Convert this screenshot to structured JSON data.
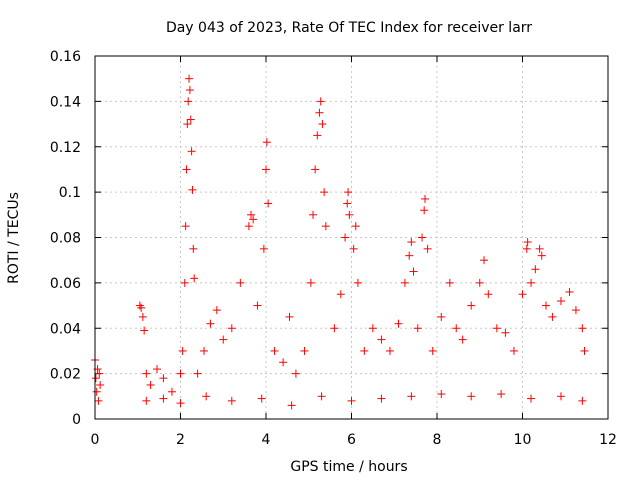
{
  "chart_data": {
    "type": "scatter",
    "title": "Day 043 of 2023, Rate Of TEC Index for receiver larr",
    "xlabel": "GPS time / hours",
    "ylabel": "ROTI / TECUs",
    "xlim": [
      0,
      12
    ],
    "ylim": [
      0,
      0.16
    ],
    "x_ticks": [
      0,
      2,
      4,
      6,
      8,
      10,
      12
    ],
    "x_tick_labels": [
      "0",
      "2",
      "4",
      "6",
      "8",
      "10",
      "12"
    ],
    "y_ticks": [
      0,
      0.02,
      0.04,
      0.06,
      0.08,
      0.1,
      0.12,
      0.14,
      0.16
    ],
    "y_tick_labels": [
      "0",
      "0.02",
      "0.04",
      "0.06",
      "0.08",
      "0.1",
      "0.12",
      "0.14",
      "0.16"
    ],
    "grid": true,
    "grid_style": "dotted",
    "marker": "+",
    "series_color": "#ff0000",
    "series": [
      {
        "name": "",
        "points": [
          [
            0.0,
            0.026
          ],
          [
            0.02,
            0.018
          ],
          [
            0.04,
            0.012
          ],
          [
            0.06,
            0.022
          ],
          [
            0.08,
            0.008
          ],
          [
            0.1,
            0.02
          ],
          [
            0.12,
            0.015
          ],
          [
            1.05,
            0.05
          ],
          [
            1.08,
            0.049
          ],
          [
            1.12,
            0.045
          ],
          [
            1.15,
            0.039
          ],
          [
            1.2,
            0.02
          ],
          [
            1.3,
            0.015
          ],
          [
            1.45,
            0.022
          ],
          [
            1.6,
            0.018
          ],
          [
            1.8,
            0.012
          ],
          [
            2.0,
            0.02
          ],
          [
            2.05,
            0.03
          ],
          [
            2.1,
            0.06
          ],
          [
            2.12,
            0.085
          ],
          [
            2.14,
            0.11
          ],
          [
            2.16,
            0.13
          ],
          [
            2.18,
            0.14
          ],
          [
            2.2,
            0.15
          ],
          [
            2.22,
            0.145
          ],
          [
            2.24,
            0.132
          ],
          [
            2.26,
            0.118
          ],
          [
            2.28,
            0.101
          ],
          [
            2.3,
            0.075
          ],
          [
            2.32,
            0.062
          ],
          [
            2.4,
            0.02
          ],
          [
            2.55,
            0.03
          ],
          [
            2.7,
            0.042
          ],
          [
            2.85,
            0.048
          ],
          [
            3.0,
            0.035
          ],
          [
            3.2,
            0.04
          ],
          [
            3.4,
            0.06
          ],
          [
            3.6,
            0.085
          ],
          [
            3.65,
            0.09
          ],
          [
            3.7,
            0.088
          ],
          [
            3.8,
            0.05
          ],
          [
            3.95,
            0.075
          ],
          [
            4.0,
            0.11
          ],
          [
            4.02,
            0.122
          ],
          [
            4.05,
            0.095
          ],
          [
            4.2,
            0.03
          ],
          [
            4.4,
            0.025
          ],
          [
            4.55,
            0.045
          ],
          [
            4.7,
            0.02
          ],
          [
            4.9,
            0.03
          ],
          [
            5.05,
            0.06
          ],
          [
            5.1,
            0.09
          ],
          [
            5.15,
            0.11
          ],
          [
            5.2,
            0.125
          ],
          [
            5.25,
            0.135
          ],
          [
            5.28,
            0.14
          ],
          [
            5.32,
            0.13
          ],
          [
            5.36,
            0.1
          ],
          [
            5.4,
            0.085
          ],
          [
            5.6,
            0.04
          ],
          [
            5.75,
            0.055
          ],
          [
            5.85,
            0.08
          ],
          [
            5.9,
            0.095
          ],
          [
            5.92,
            0.1
          ],
          [
            5.95,
            0.09
          ],
          [
            6.05,
            0.075
          ],
          [
            6.1,
            0.085
          ],
          [
            6.15,
            0.06
          ],
          [
            6.3,
            0.03
          ],
          [
            6.5,
            0.04
          ],
          [
            6.7,
            0.035
          ],
          [
            6.9,
            0.03
          ],
          [
            7.1,
            0.042
          ],
          [
            7.25,
            0.06
          ],
          [
            7.35,
            0.072
          ],
          [
            7.4,
            0.078
          ],
          [
            7.45,
            0.065
          ],
          [
            7.55,
            0.04
          ],
          [
            7.65,
            0.08
          ],
          [
            7.7,
            0.092
          ],
          [
            7.72,
            0.097
          ],
          [
            7.78,
            0.075
          ],
          [
            7.9,
            0.03
          ],
          [
            8.1,
            0.045
          ],
          [
            8.3,
            0.06
          ],
          [
            8.45,
            0.04
          ],
          [
            8.6,
            0.035
          ],
          [
            8.8,
            0.05
          ],
          [
            9.0,
            0.06
          ],
          [
            9.1,
            0.07
          ],
          [
            9.2,
            0.055
          ],
          [
            9.4,
            0.04
          ],
          [
            9.6,
            0.038
          ],
          [
            9.8,
            0.03
          ],
          [
            10.0,
            0.055
          ],
          [
            10.1,
            0.075
          ],
          [
            10.12,
            0.078
          ],
          [
            10.2,
            0.06
          ],
          [
            10.3,
            0.066
          ],
          [
            10.4,
            0.075
          ],
          [
            10.45,
            0.072
          ],
          [
            10.55,
            0.05
          ],
          [
            10.7,
            0.045
          ],
          [
            10.9,
            0.052
          ],
          [
            11.1,
            0.056
          ],
          [
            11.25,
            0.048
          ],
          [
            11.4,
            0.04
          ],
          [
            11.45,
            0.03
          ],
          [
            1.2,
            0.008
          ],
          [
            1.6,
            0.009
          ],
          [
            2.0,
            0.007
          ],
          [
            2.6,
            0.01
          ],
          [
            3.2,
            0.008
          ],
          [
            3.9,
            0.009
          ],
          [
            4.6,
            0.006
          ],
          [
            5.3,
            0.01
          ],
          [
            6.0,
            0.008
          ],
          [
            6.7,
            0.009
          ],
          [
            7.4,
            0.01
          ],
          [
            8.1,
            0.011
          ],
          [
            8.8,
            0.01
          ],
          [
            9.5,
            0.011
          ],
          [
            10.2,
            0.009
          ],
          [
            10.9,
            0.01
          ],
          [
            11.4,
            0.008
          ]
        ]
      }
    ]
  }
}
